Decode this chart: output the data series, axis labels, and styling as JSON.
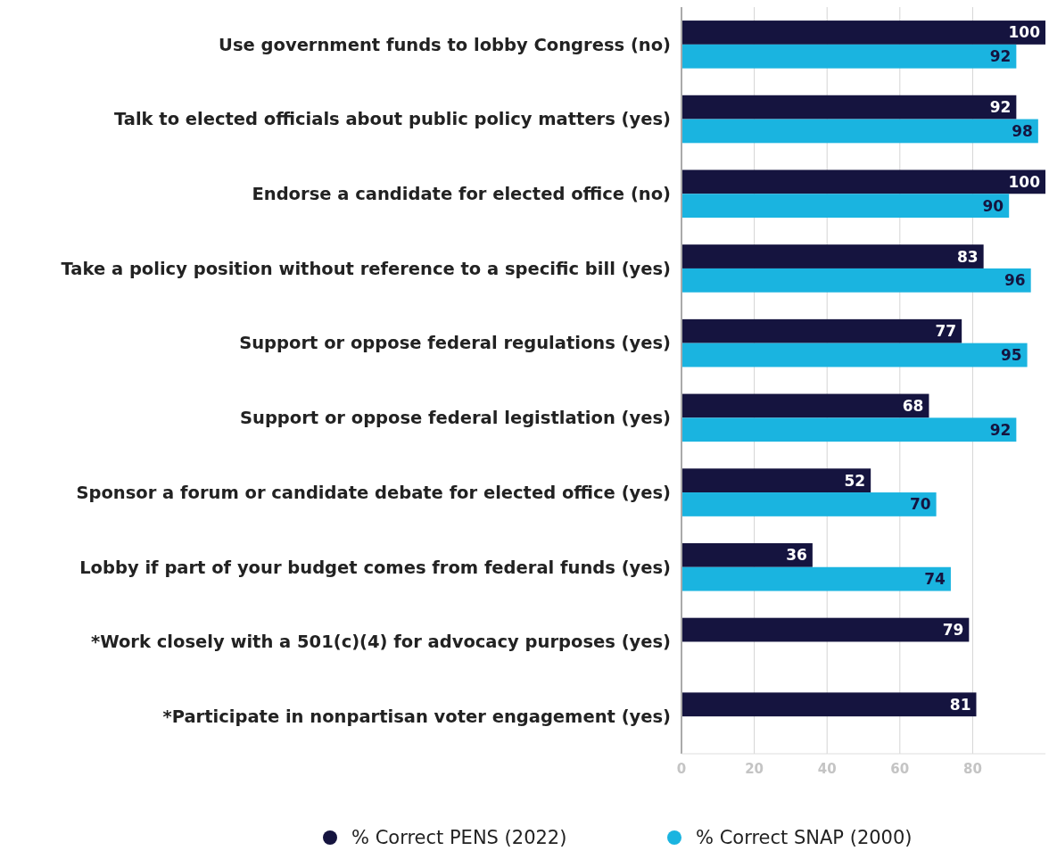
{
  "chart_data": {
    "type": "bar",
    "orientation": "horizontal",
    "categories": [
      "Use government funds to lobby Congress (no)",
      "Talk to elected officials about public policy matters (yes)",
      "Endorse a candidate for elected office (no)",
      "Take a policy position without reference to a specific bill (yes)",
      "Support or oppose federal regulations (yes)",
      "Support or oppose federal legistlation (yes)",
      "Sponsor a forum or candidate debate for elected office (yes)",
      "Lobby if part of your budget comes from federal funds (yes)",
      "*Work closely with a 501(c)(4) for advocacy purposes (yes)",
      "*Participate in nonpartisan voter engagement (yes)"
    ],
    "series": [
      {
        "name": "% Correct PENS (2022)",
        "color": "#15143f",
        "values": [
          100,
          92,
          100,
          83,
          77,
          68,
          52,
          36,
          79,
          81
        ]
      },
      {
        "name": "% Correct SNAP (2000)",
        "color": "#1ab4e0",
        "values": [
          92,
          98,
          90,
          96,
          95,
          92,
          70,
          74,
          null,
          null
        ]
      }
    ],
    "xlim": [
      0,
      100
    ],
    "xticks": [
      0,
      20,
      40,
      60,
      80
    ],
    "grid": "x",
    "legend": "bottom",
    "data_labels": true
  }
}
